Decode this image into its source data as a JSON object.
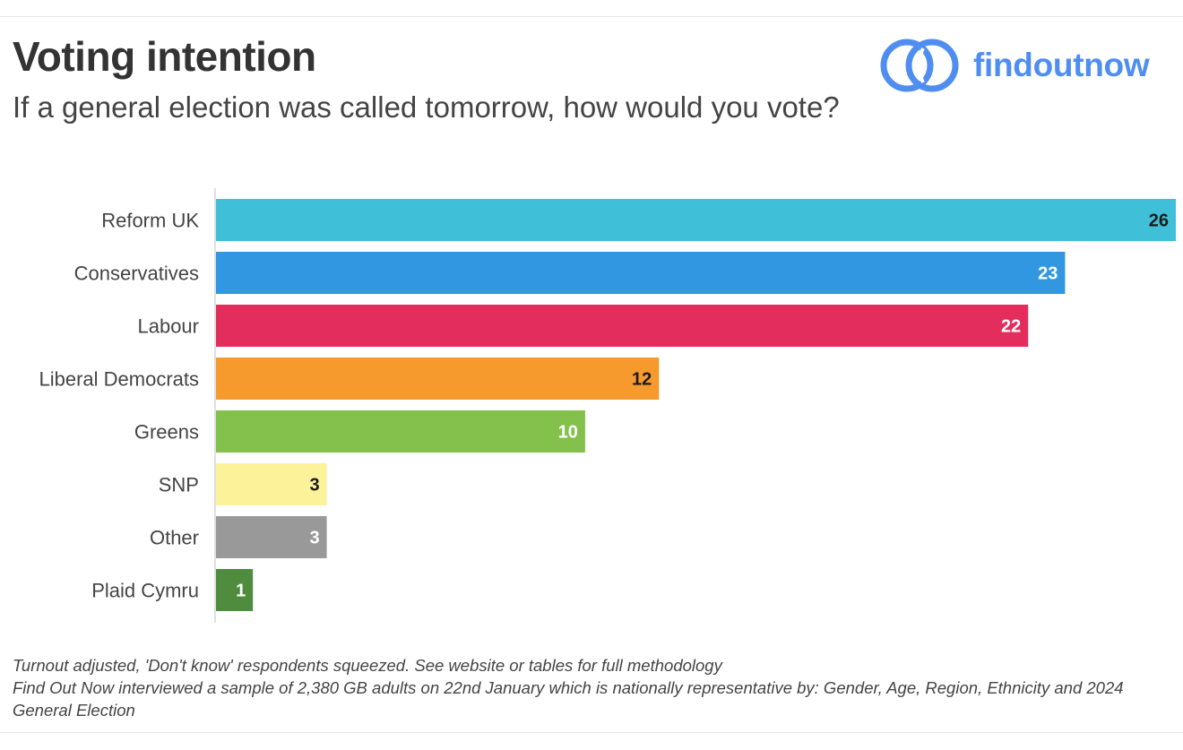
{
  "header": {
    "title": "Voting intention",
    "subtitle": "If a general election was called tomorrow, how would you vote?"
  },
  "logo": {
    "text": "findoutnow",
    "icon": "interlocking-rings-icon",
    "color": "#4f8ef0"
  },
  "chart_data": {
    "type": "bar",
    "orientation": "horizontal",
    "categories": [
      "Reform UK",
      "Conservatives",
      "Labour",
      "Liberal Democrats",
      "Greens",
      "SNP",
      "Other",
      "Plaid Cymru"
    ],
    "values": [
      26,
      23,
      22,
      12,
      10,
      3,
      3,
      1
    ],
    "value_labels": [
      "26",
      "23",
      "22",
      "12",
      "10",
      "3",
      "3",
      "1"
    ],
    "colors": [
      "#40c0d8",
      "#3097e0",
      "#e32d5c",
      "#f79a2e",
      "#84c04c",
      "#fbf29a",
      "#999999",
      "#4f8c3e"
    ],
    "label_colors": [
      "#1a1a1a",
      "#ffffff",
      "#ffffff",
      "#1a1a1a",
      "#ffffff",
      "#1a1a1a",
      "#ffffff",
      "#ffffff"
    ],
    "xlim": [
      0,
      26
    ],
    "grid": false,
    "legend": "none"
  },
  "footnotes": [
    "Turnout adjusted, 'Don't know' respondents squeezed. See website or tables for full methodology",
    "Find Out Now interviewed a sample of 2,380 GB adults on 22nd January which is nationally representative by: Gender, Age, Region, Ethnicity and 2024 General Election"
  ]
}
